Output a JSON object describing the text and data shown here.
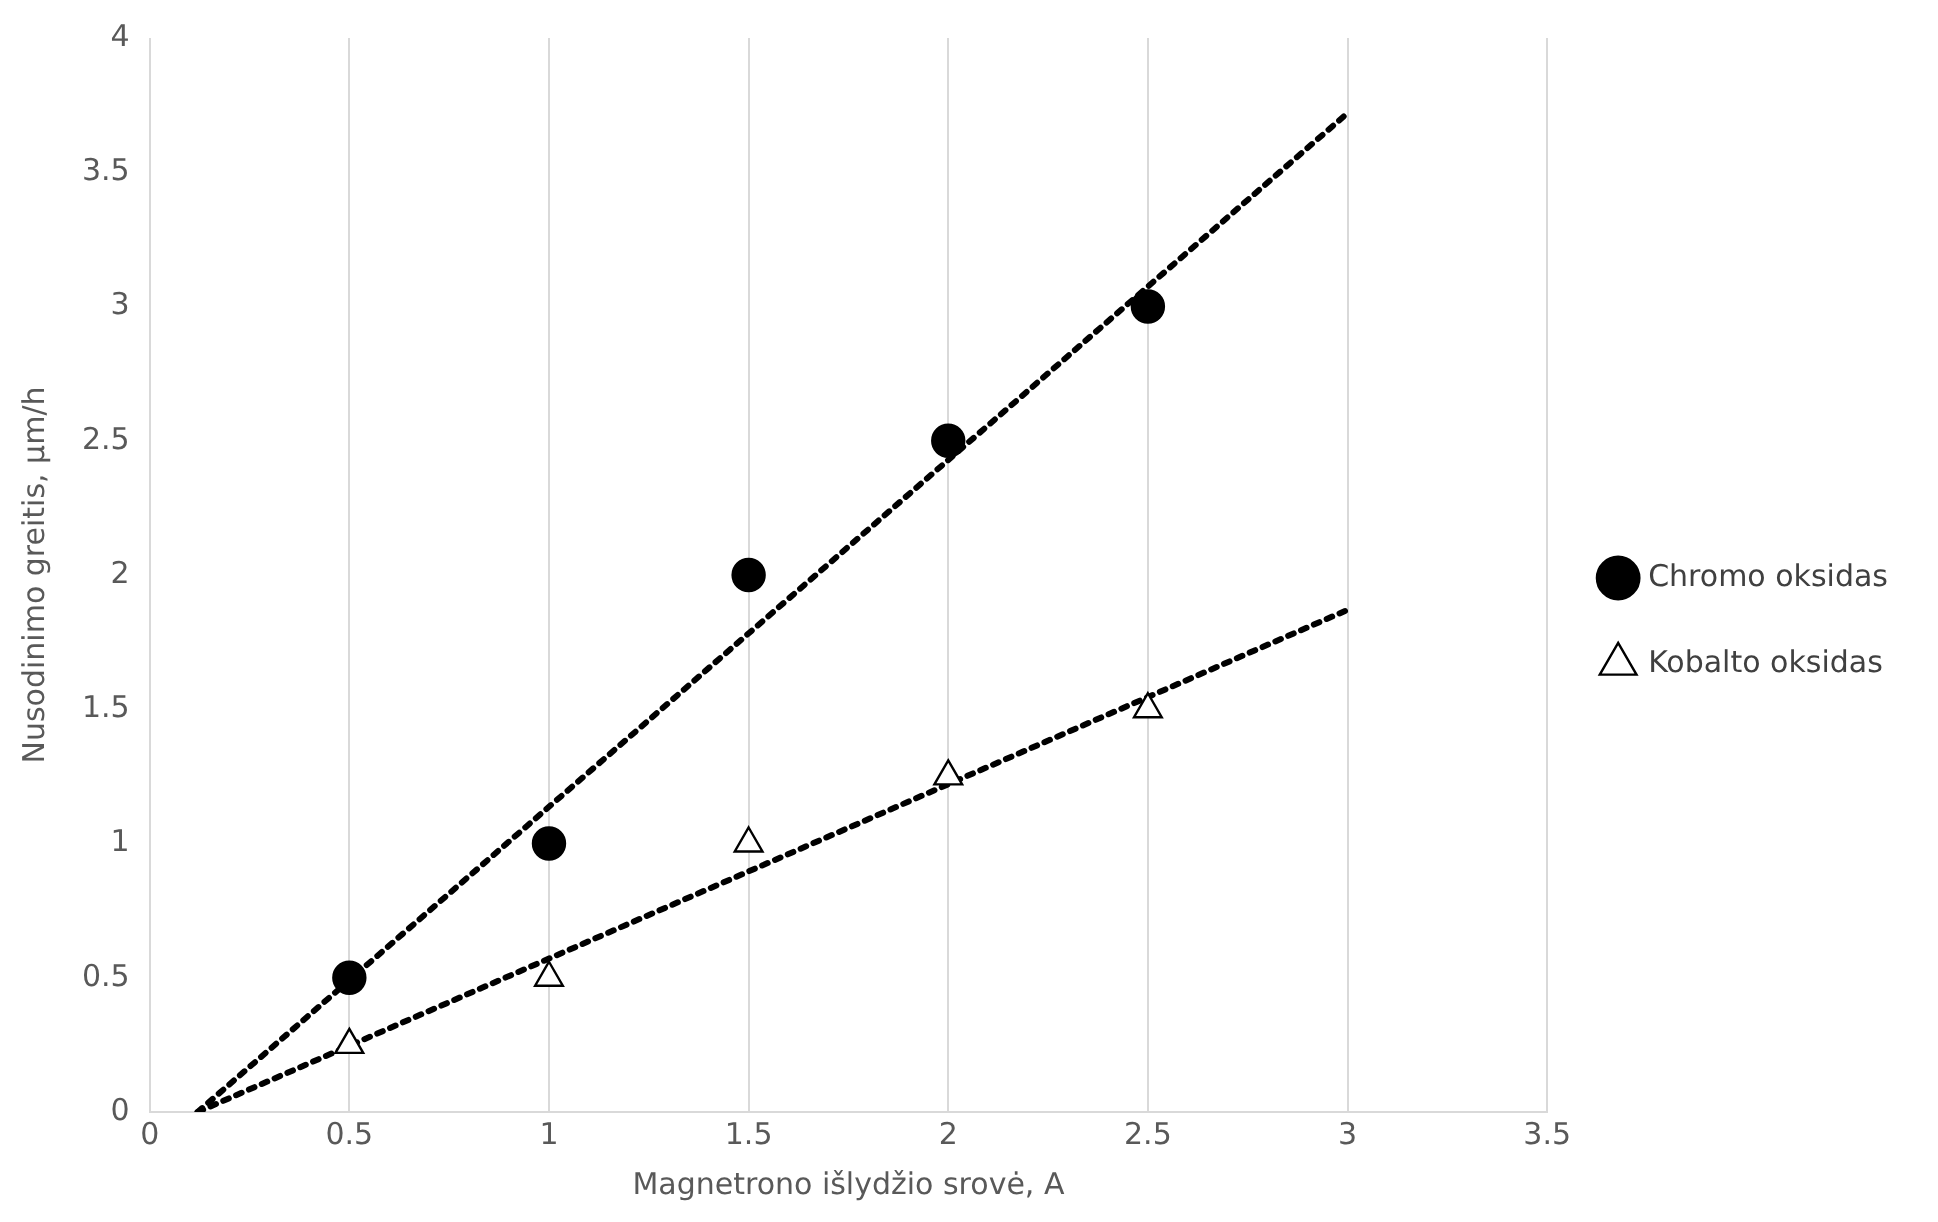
{
  "chart_data": {
    "type": "scatter",
    "xlabel": "Magnetrono išlydžio srovė, A",
    "ylabel": "Nusodinimo greitis, µm/h",
    "xlim": [
      0,
      3.5
    ],
    "xticks": [
      0,
      0.5,
      1,
      1.5,
      2,
      2.5,
      3,
      3.5
    ],
    "ylim": [
      0,
      4
    ],
    "yticks": [
      0,
      0.5,
      1,
      1.5,
      2,
      2.5,
      3,
      3.5,
      4
    ],
    "grid": "x",
    "legend": "right",
    "series": [
      {
        "name": "Chromo oksidas",
        "marker": "circle",
        "color": "#000000",
        "x": [
          0.5,
          1,
          1.5,
          2,
          2.5
        ],
        "values": [
          0.5,
          1,
          2,
          2.5,
          3
        ]
      },
      {
        "name": "Kobalto oksidas",
        "marker": "triangle",
        "color": "#000000",
        "x": [
          0.5,
          1,
          1.5,
          2,
          2.5
        ],
        "values": [
          0.25,
          0.5,
          1,
          1.25,
          1.5
        ]
      },
      {
        "type": "line",
        "marker": "none",
        "line_style": "dotted",
        "color": "#000000",
        "x": [
          0.12,
          3
        ],
        "values": [
          0,
          3.72
        ]
      },
      {
        "type": "line",
        "marker": "none",
        "line_style": "dotted",
        "color": "#000000",
        "x": [
          0.12,
          3
        ],
        "values": [
          0,
          1.87
        ]
      }
    ]
  }
}
